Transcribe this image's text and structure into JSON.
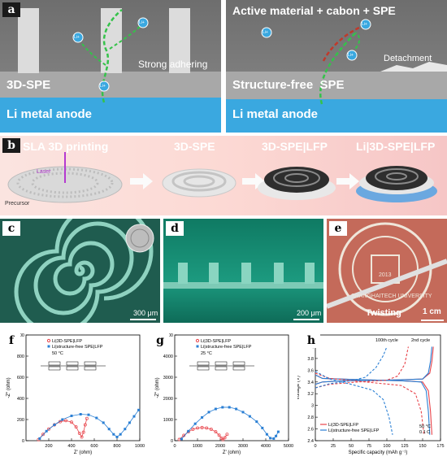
{
  "panel_a": {
    "tag": "a",
    "left": {
      "electrolyte": "3D-SPE",
      "anode": "Li metal anode",
      "note": "Strong adhering",
      "ion": "Li+"
    },
    "right": {
      "title": "Active material + cabon + SPE",
      "electrolyte": "Structure-free  SPE",
      "anode": "Li metal anode",
      "note": "Detachment",
      "ion": "Li+"
    }
  },
  "panel_b": {
    "tag": "b",
    "steps": [
      "SLA 3D printing",
      "3D-SPE",
      "3D-SPE|LFP",
      "Li|3D-SPE|LFP"
    ],
    "laser": "Laser",
    "precursor": "Precursor"
  },
  "panel_c": {
    "tag": "c",
    "scale": "300 μm"
  },
  "panel_d": {
    "tag": "d",
    "scale": "200 μm"
  },
  "panel_e": {
    "tag": "e",
    "scale": "1 cm",
    "caption": "Twisting",
    "seal_text": "SHANGHAITECH UNIVERSITY",
    "seal_year": "2013"
  },
  "colors": {
    "series1": "#e8434a",
    "series2": "#2a7fd4",
    "anode_blue": "#3aa8e0"
  },
  "chart_data": [
    {
      "id": "f",
      "type": "scatter",
      "legend": [
        "Li|3D-SPE|LFP",
        "Li|structure-free SPE|LFP"
      ],
      "annotation": "50 °C",
      "xlabel": "Z' (ohm)",
      "ylabel": "-Z'' (ohm)",
      "xlim": [
        0,
        1000
      ],
      "ylim": [
        0,
        1000
      ],
      "xticks": [
        200,
        400,
        600,
        800,
        1000
      ],
      "yticks": [
        0,
        200,
        400,
        600,
        800,
        1000
      ],
      "series": [
        {
          "values": [
            [
              110,
              10
            ],
            [
              150,
              60
            ],
            [
              200,
              110
            ],
            [
              250,
              150
            ],
            [
              300,
              180
            ],
            [
              350,
              190
            ],
            [
              400,
              175
            ],
            [
              440,
              130
            ],
            [
              470,
              70
            ],
            [
              490,
              35
            ],
            [
              505,
              80
            ],
            [
              520,
              150
            ],
            [
              535,
              210
            ]
          ]
        },
        {
          "values": [
            [
              120,
              20
            ],
            [
              180,
              90
            ],
            [
              250,
              150
            ],
            [
              320,
              200
            ],
            [
              400,
              235
            ],
            [
              480,
              250
            ],
            [
              550,
              245
            ],
            [
              620,
              215
            ],
            [
              680,
              170
            ],
            [
              730,
              110
            ],
            [
              770,
              60
            ],
            [
              800,
              35
            ],
            [
              830,
              60
            ],
            [
              870,
              110
            ],
            [
              910,
              170
            ],
            [
              950,
              230
            ],
            [
              990,
              290
            ]
          ]
        }
      ]
    },
    {
      "id": "g",
      "type": "scatter",
      "legend": [
        "Li|3D-SPE|LFP",
        "Li|structure-free SPE|LFP"
      ],
      "annotation": "25 °C",
      "xlabel": "Z' (ohm)",
      "ylabel": "-Z'' (ohm)",
      "xlim": [
        0,
        5000
      ],
      "ylim": [
        0,
        5000
      ],
      "xticks": [
        0,
        1000,
        2000,
        3000,
        4000,
        5000
      ],
      "yticks": [
        0,
        1000,
        2000,
        3000,
        4000,
        5000
      ],
      "series": [
        {
          "values": [
            [
              200,
              60
            ],
            [
              400,
              250
            ],
            [
              600,
              420
            ],
            [
              800,
              540
            ],
            [
              1000,
              600
            ],
            [
              1200,
              620
            ],
            [
              1400,
              600
            ],
            [
              1600,
              540
            ],
            [
              1800,
              420
            ],
            [
              1950,
              260
            ],
            [
              2050,
              120
            ],
            [
              2120,
              50
            ],
            [
              2200,
              140
            ],
            [
              2300,
              300
            ]
          ]
        },
        {
          "values": [
            [
              300,
              80
            ],
            [
              600,
              450
            ],
            [
              900,
              800
            ],
            [
              1200,
              1100
            ],
            [
              1500,
              1350
            ],
            [
              1800,
              1500
            ],
            [
              2100,
              1580
            ],
            [
              2400,
              1580
            ],
            [
              2700,
              1500
            ],
            [
              3000,
              1350
            ],
            [
              3300,
              1150
            ],
            [
              3600,
              900
            ],
            [
              3850,
              600
            ],
            [
              4050,
              300
            ],
            [
              4200,
              120
            ],
            [
              4350,
              100
            ],
            [
              4450,
              220
            ],
            [
              4550,
              420
            ]
          ]
        }
      ]
    },
    {
      "id": "h",
      "type": "line",
      "legend": [
        "Li|3D-SPE|LFP",
        "Li|structure-free SPE|LFP"
      ],
      "annotations": [
        "100th cycle",
        "2nd cycle",
        "50 °C",
        "0.1 C"
      ],
      "xlabel": "Specific capacity (mAh g⁻¹)",
      "ylabel": "Voltage (V)",
      "xlim": [
        0,
        175
      ],
      "ylim": [
        2.4,
        4.2
      ],
      "xticks": [
        0,
        25,
        50,
        75,
        100,
        125,
        150,
        175
      ],
      "yticks": [
        2.4,
        2.6,
        2.8,
        3.0,
        3.2,
        3.4,
        3.6,
        3.8,
        4.0,
        4.2
      ],
      "series": [
        {
          "values": [
            [
              0,
              3.36
            ],
            [
              10,
              3.4
            ],
            [
              40,
              3.42
            ],
            [
              100,
              3.43
            ],
            [
              150,
              3.45
            ],
            [
              160,
              3.55
            ],
            [
              163,
              3.75
            ],
            [
              165,
              4.0
            ]
          ]
        },
        {
          "values": [
            [
              0,
              3.52
            ],
            [
              10,
              3.46
            ],
            [
              60,
              3.44
            ],
            [
              120,
              3.42
            ],
            [
              150,
              3.4
            ],
            [
              158,
              3.25
            ],
            [
              161,
              2.9
            ],
            [
              163,
              2.5
            ]
          ]
        },
        {
          "values": [
            [
              0,
              3.36
            ],
            [
              10,
              3.4
            ],
            [
              40,
              3.42
            ],
            [
              100,
              3.43
            ],
            [
              150,
              3.45
            ],
            [
              158,
              3.55
            ],
            [
              161,
              3.75
            ],
            [
              163,
              4.0
            ]
          ]
        },
        {
          "values": [
            [
              0,
              3.52
            ],
            [
              10,
              3.46
            ],
            [
              60,
              3.44
            ],
            [
              120,
              3.42
            ],
            [
              148,
              3.4
            ],
            [
              155,
              3.25
            ],
            [
              158,
              2.9
            ],
            [
              160,
              2.5
            ]
          ]
        },
        {
          "values": [
            [
              0,
              3.3
            ],
            [
              20,
              3.36
            ],
            [
              60,
              3.4
            ],
            [
              100,
              3.43
            ],
            [
              115,
              3.5
            ],
            [
              125,
              3.7
            ],
            [
              130,
              4.0
            ]
          ]
        },
        {
          "values": [
            [
              0,
              3.55
            ],
            [
              20,
              3.46
            ],
            [
              70,
              3.4
            ],
            [
              120,
              3.34
            ],
            [
              140,
              3.2
            ],
            [
              148,
              2.9
            ],
            [
              152,
              2.5
            ]
          ]
        },
        {
          "values": [
            [
              0,
              3.3
            ],
            [
              20,
              3.37
            ],
            [
              50,
              3.42
            ],
            [
              70,
              3.48
            ],
            [
              85,
              3.65
            ],
            [
              95,
              3.85
            ],
            [
              100,
              4.0
            ]
          ]
        },
        {
          "values": [
            [
              0,
              3.58
            ],
            [
              20,
              3.45
            ],
            [
              50,
              3.36
            ],
            [
              80,
              3.26
            ],
            [
              95,
              3.1
            ],
            [
              103,
              2.8
            ],
            [
              108,
              2.5
            ]
          ]
        }
      ]
    }
  ]
}
